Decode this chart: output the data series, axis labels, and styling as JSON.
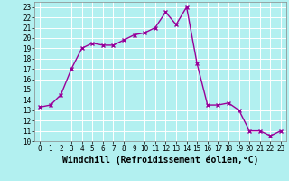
{
  "x": [
    0,
    1,
    2,
    3,
    4,
    5,
    6,
    7,
    8,
    9,
    10,
    11,
    12,
    13,
    14,
    15,
    16,
    17,
    18,
    19,
    20,
    21,
    22,
    23
  ],
  "y": [
    13.3,
    13.5,
    14.5,
    17.0,
    19.0,
    19.5,
    19.3,
    19.3,
    19.8,
    20.3,
    20.5,
    21.0,
    22.5,
    21.3,
    23.0,
    17.5,
    13.5,
    13.5,
    13.7,
    13.0,
    11.0,
    11.0,
    10.5,
    11.0
  ],
  "line_color": "#990099",
  "marker": "x",
  "marker_size": 3,
  "linewidth": 1.0,
  "markeredgewidth": 1.0,
  "xlabel": "Windchill (Refroidissement éolien,°C)",
  "xlim": [
    -0.5,
    23.5
  ],
  "ylim": [
    10,
    23.5
  ],
  "xticks": [
    0,
    1,
    2,
    3,
    4,
    5,
    6,
    7,
    8,
    9,
    10,
    11,
    12,
    13,
    14,
    15,
    16,
    17,
    18,
    19,
    20,
    21,
    22,
    23
  ],
  "yticks": [
    10,
    11,
    12,
    13,
    14,
    15,
    16,
    17,
    18,
    19,
    20,
    21,
    22,
    23
  ],
  "bg_color": "#b2f0f0",
  "grid_color": "#ffffff",
  "tick_fontsize": 5.5,
  "xlabel_fontsize": 7.0
}
